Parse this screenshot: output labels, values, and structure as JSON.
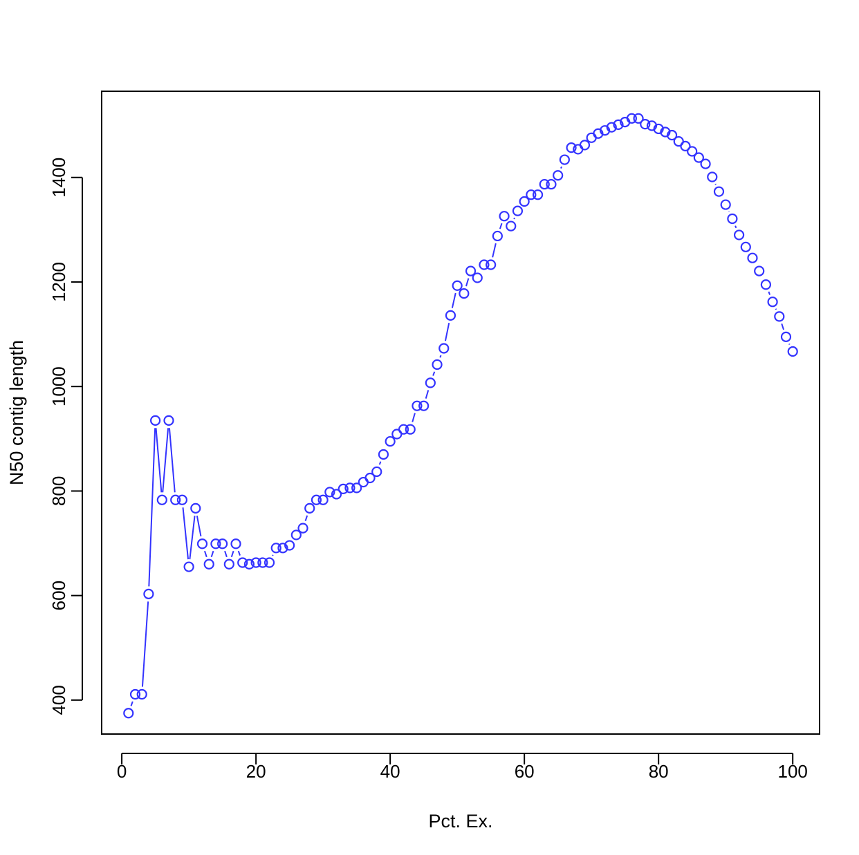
{
  "chart_data": {
    "type": "scatter",
    "title": "",
    "xlabel": "Pct. Ex.",
    "ylabel": "N50 contig length",
    "xlim": [
      -3,
      104
    ],
    "ylim": [
      335,
      1565
    ],
    "xticks": [
      0,
      20,
      40,
      60,
      80,
      100
    ],
    "yticks": [
      400,
      600,
      800,
      1000,
      1200,
      1400
    ],
    "grid": false,
    "legend": "none",
    "marker": "open-circle",
    "connect_with_line": true,
    "color": "#3333ff",
    "x": [
      1,
      2,
      3,
      4,
      5,
      6,
      7,
      8,
      9,
      10,
      11,
      12,
      13,
      14,
      15,
      16,
      17,
      18,
      19,
      20,
      21,
      22,
      23,
      24,
      25,
      26,
      27,
      28,
      29,
      30,
      31,
      32,
      33,
      34,
      35,
      36,
      37,
      38,
      39,
      40,
      41,
      42,
      43,
      44,
      45,
      46,
      47,
      48,
      49,
      50,
      51,
      52,
      53,
      54,
      55,
      56,
      57,
      58,
      59,
      60,
      61,
      62,
      63,
      64,
      65,
      66,
      67,
      68,
      69,
      70,
      71,
      72,
      73,
      74,
      75,
      76,
      77,
      78,
      79,
      80,
      81,
      82,
      83,
      84,
      85,
      86,
      87,
      88,
      89,
      90,
      91,
      92,
      93,
      94,
      95,
      96,
      97,
      98,
      99,
      100
    ],
    "y": [
      375,
      411,
      411,
      603,
      935,
      783,
      935,
      783,
      783,
      655,
      767,
      699,
      660,
      699,
      699,
      660,
      699,
      663,
      660,
      663,
      663,
      663,
      691,
      691,
      696,
      716,
      729,
      767,
      783,
      783,
      798,
      794,
      804,
      806,
      806,
      817,
      825,
      837,
      870,
      895,
      909,
      918,
      918,
      963,
      963,
      1007,
      1042,
      1073,
      1136,
      1193,
      1178,
      1221,
      1208,
      1233,
      1233,
      1288,
      1326,
      1307,
      1336,
      1354,
      1367,
      1367,
      1387,
      1387,
      1404,
      1434,
      1457,
      1454,
      1462,
      1476,
      1484,
      1490,
      1496,
      1501,
      1506,
      1513,
      1513,
      1502,
      1499,
      1493,
      1487,
      1481,
      1469,
      1460,
      1450,
      1438,
      1426,
      1401,
      1373,
      1348,
      1321,
      1290,
      1267,
      1246,
      1221,
      1195,
      1162,
      1134,
      1095,
      1067
    ]
  }
}
